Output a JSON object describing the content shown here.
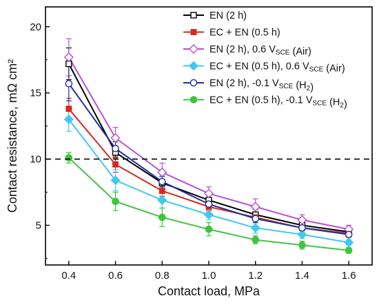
{
  "chart_data": {
    "type": "line",
    "title": "",
    "xlabel": "Contact load, MPa",
    "ylabel": "Contact resistance, mΩ cm²",
    "x": [
      0.4,
      0.6,
      0.8,
      1.0,
      1.2,
      1.4,
      1.6
    ],
    "x_ticks": [
      "0.4",
      "0.6",
      "0.8",
      "1.0",
      "1.2",
      "1.4",
      "1.6"
    ],
    "y_ticks": [
      "5",
      "10",
      "15",
      "20"
    ],
    "xlim": [
      0.3,
      1.7
    ],
    "ylim": [
      2,
      21.5
    ],
    "reference_line": {
      "y": 10,
      "style": "dashed",
      "color": "#000000"
    },
    "legend_position": "top-right",
    "grid": false,
    "series": [
      {
        "name": "EN (2 h)",
        "name_parts": [
          [
            "EN (2 h)",
            ""
          ]
        ],
        "color": "#000000",
        "marker": "square-open",
        "values": [
          17.2,
          10.5,
          8.2,
          6.9,
          5.8,
          5.0,
          4.5
        ],
        "errors": [
          1.2,
          0.4,
          0.5,
          0.4,
          0.4,
          0.3,
          0.2
        ]
      },
      {
        "name": "EC + EN (0.5 h)",
        "name_parts": [
          [
            "EC + EN (0.5 h)",
            ""
          ]
        ],
        "color": "#d42a1f",
        "marker": "square-filled",
        "values": [
          13.8,
          9.6,
          7.6,
          6.4,
          5.6,
          4.8,
          4.4
        ],
        "errors": [
          0.8,
          0.6,
          0.4,
          0.3,
          0.4,
          0.2,
          0.2
        ]
      },
      {
        "name": "EN (2 h), 0.6 V_SCE (Air)",
        "name_parts": [
          [
            "EN (2 h), 0.6 V",
            ""
          ],
          [
            "SCE",
            "sub"
          ],
          [
            " (Air)",
            ""
          ]
        ],
        "color": "#b84fd6",
        "marker": "diamond-open",
        "values": [
          17.7,
          11.6,
          9.0,
          7.4,
          6.4,
          5.4,
          4.7
        ],
        "errors": [
          1.4,
          0.8,
          0.7,
          0.5,
          0.6,
          0.4,
          0.3
        ]
      },
      {
        "name": "EC + EN (0.5 h), 0.6 V_SCE (Air)",
        "name_parts": [
          [
            "EC + EN (0.5 h), 0.6 V",
            ""
          ],
          [
            "SCE",
            "sub"
          ],
          [
            " (Air)",
            ""
          ]
        ],
        "color": "#42c8ef",
        "marker": "diamond-filled",
        "values": [
          13.0,
          8.4,
          6.9,
          5.8,
          4.8,
          4.3,
          3.7
        ],
        "errors": [
          0.9,
          0.8,
          0.6,
          0.4,
          0.4,
          0.3,
          0.2
        ]
      },
      {
        "name": "EN (2 h), -0.1 V_SCE (H2)",
        "name_parts": [
          [
            "EN (2 h), -0.1 V",
            ""
          ],
          [
            "SCE",
            "sub"
          ],
          [
            " (H",
            ""
          ],
          [
            "2",
            "sub"
          ],
          [
            ")",
            ""
          ]
        ],
        "color": "#1f2fa0",
        "marker": "circle-open",
        "values": [
          15.7,
          10.8,
          8.3,
          6.6,
          5.5,
          4.8,
          4.3
        ],
        "errors": [
          1.3,
          0.5,
          0.4,
          0.3,
          0.3,
          0.2,
          0.2
        ]
      },
      {
        "name": "EC + EN (0.5 h), -0.1 V_SCE (H2)",
        "name_parts": [
          [
            "EC + EN (0.5 h), -0.1 V",
            ""
          ],
          [
            "SCE",
            "sub"
          ],
          [
            " (H",
            ""
          ],
          [
            "2",
            "sub"
          ],
          [
            ")",
            ""
          ]
        ],
        "color": "#3fc43f",
        "marker": "circle-filled",
        "values": [
          10.1,
          6.8,
          5.6,
          4.7,
          3.9,
          3.5,
          3.1
        ],
        "errors": [
          0.4,
          0.7,
          0.7,
          0.5,
          0.3,
          0.3,
          0.2
        ]
      }
    ]
  }
}
